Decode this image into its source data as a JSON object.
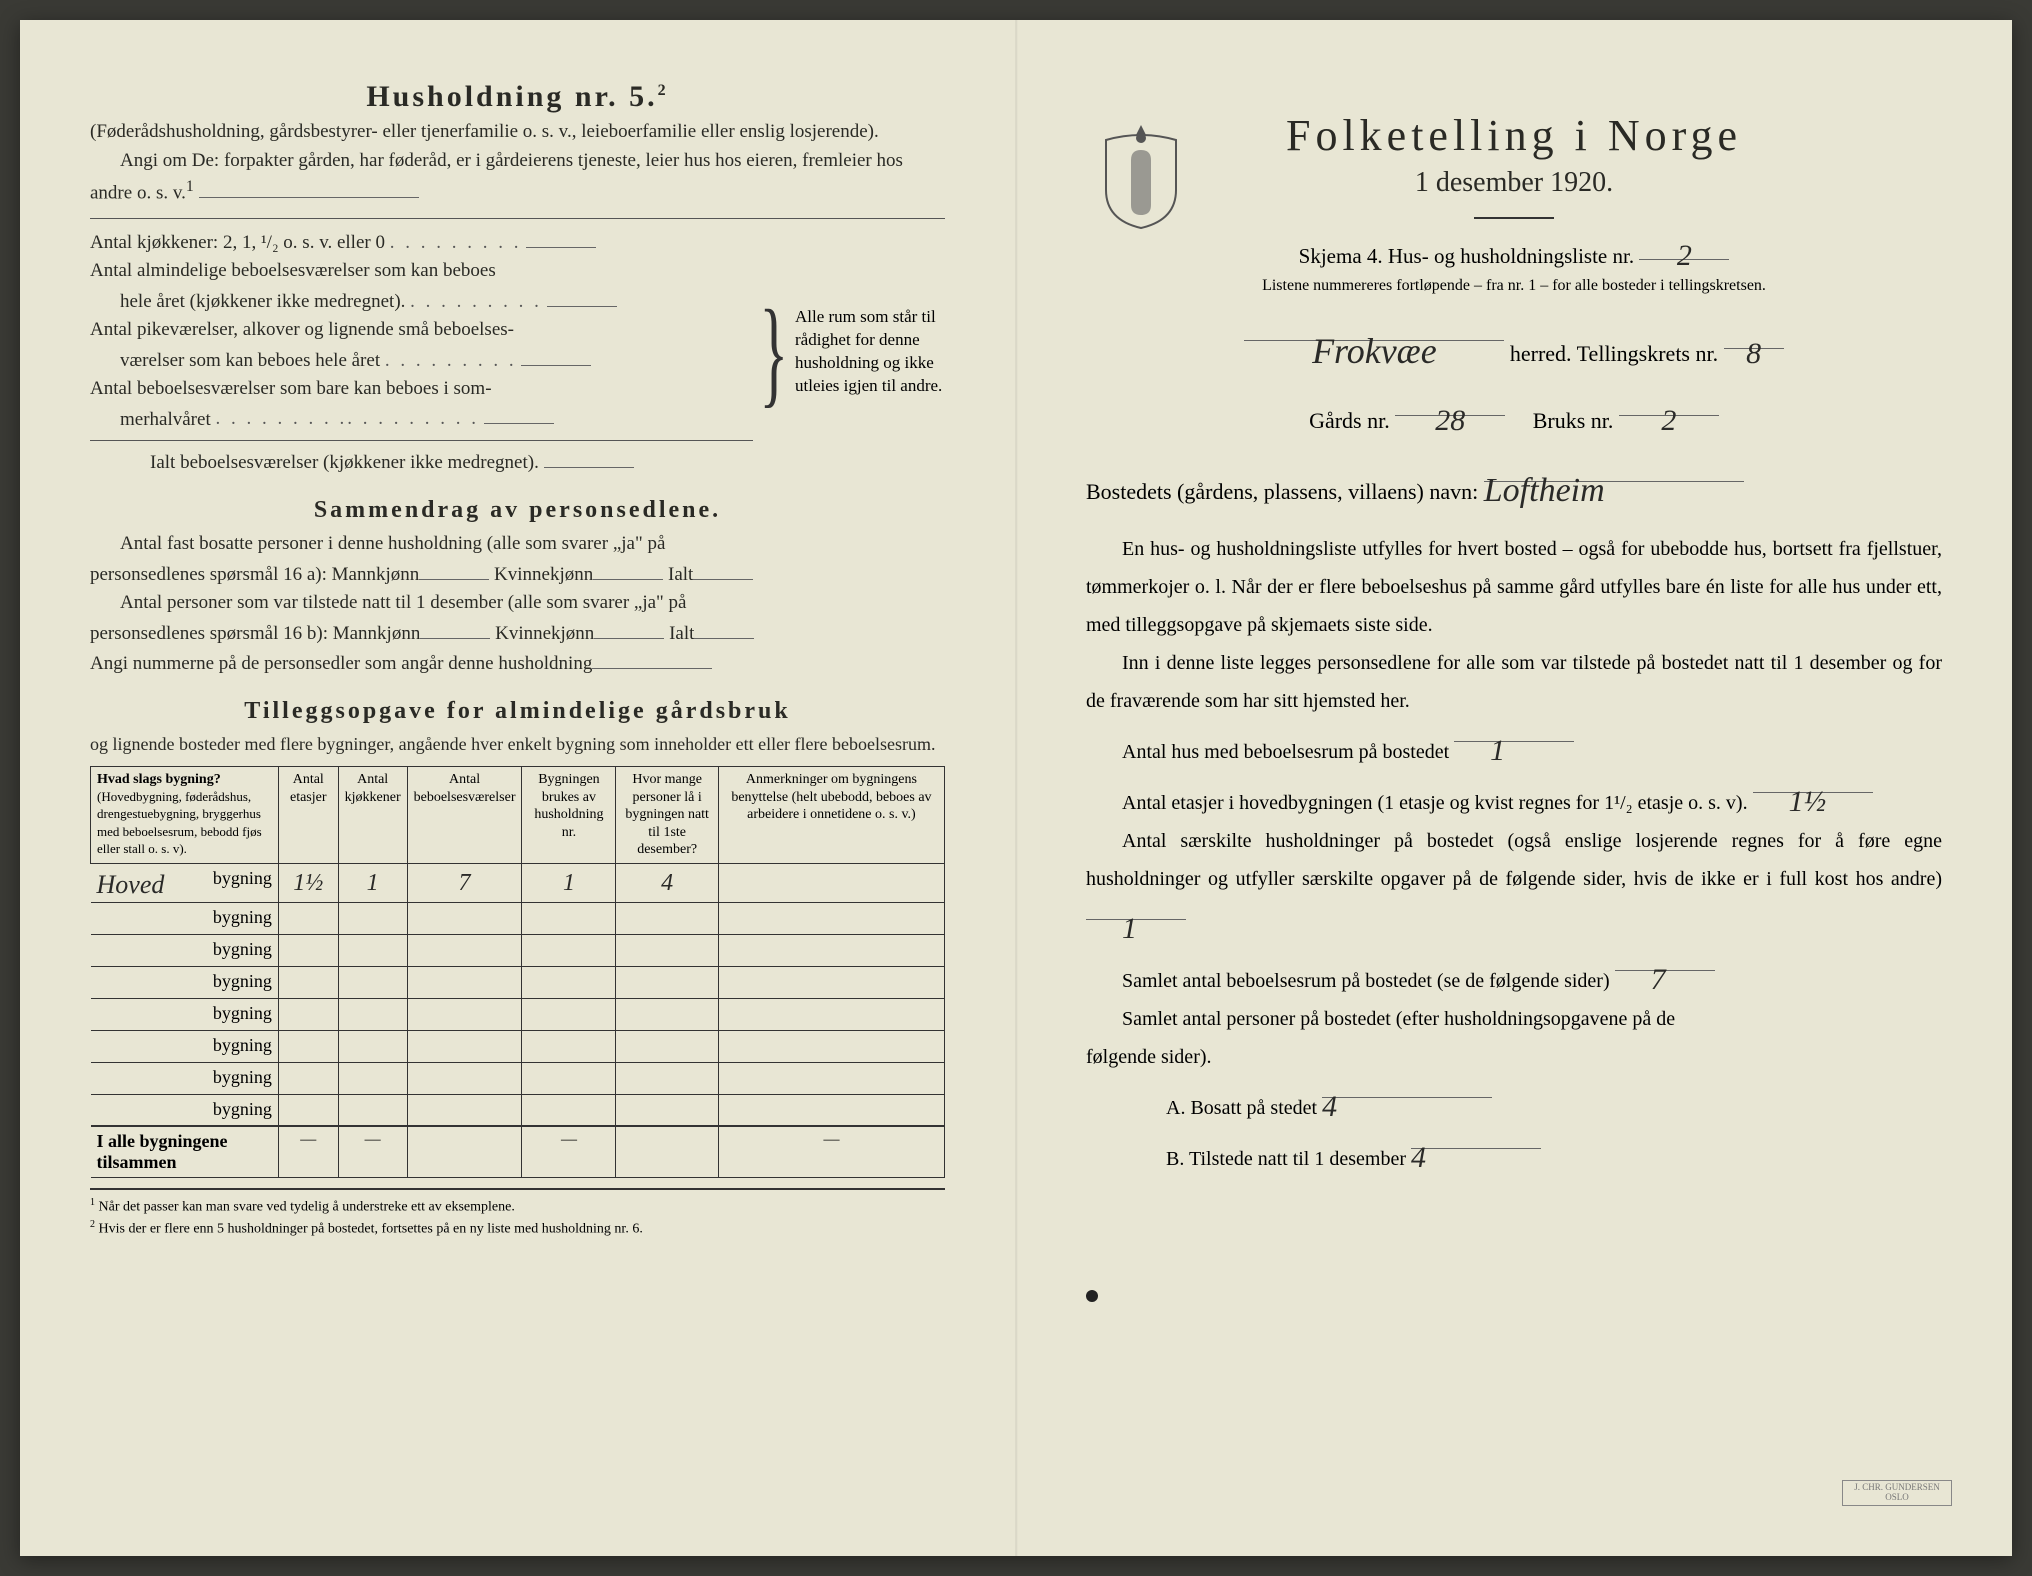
{
  "left": {
    "heading": "Husholdning nr. 5.",
    "heading_sup": "2",
    "intro1": "(Føderådshusholdning, gårdsbestyrer- eller tjenerfamilie o. s. v., leieboerfamilie eller enslig losjerende).",
    "intro2": "Angi om De:  forpakter gården, har føderåd, er i gårdeierens tjeneste, leier hus hos eieren, fremleier hos andre o. s. v.",
    "intro2_sup": "1",
    "l1": "Antal kjøkkener: 2, 1, ¹/₂ o. s. v. eller 0",
    "l2a": "Antal almindelige beboelsesværelser som kan beboes",
    "l2b": "hele året (kjøkkener ikke medregnet).",
    "l3a": "Antal pikeværelser, alkover og lignende små beboelses-",
    "l3b": "værelser som kan beboes hele året",
    "l4a": "Antal beboelsesværelser som bare kan beboes i som-",
    "l4b": "merhalvåret",
    "l5": "Ialt beboelsesværelser  (kjøkkener ikke medregnet).",
    "brace_text": "Alle rum som står til rådighet for denne husholdning og ikke utleies igjen til andre.",
    "h3a": "Sammendrag av personsedlene.",
    "s1a": "Antal fast bosatte personer i denne husholdning (alle som svarer „ja\" på",
    "s1b": "personsedlenes spørsmål 16 a): Mannkjønn",
    "s1c": "Kvinnekjønn",
    "s1d": "Ialt",
    "s2a": "Antal personer som var tilstede natt til 1 desember (alle som svarer „ja\" på",
    "s2b": "personsedlenes spørsmål 16 b): Mannkjønn",
    "s3": "Angi nummerne på de personsedler som angår denne husholdning",
    "h3b": "Tilleggsopgave for almindelige gårdsbruk",
    "h3b_sub": "og lignende bosteder med flere bygninger, angående hver enkelt bygning som inneholder ett eller flere beboelsesrum.",
    "th1": "Hvad slags bygning?",
    "th1_sub": "(Hovedbygning, føderådshus, drengestuebygning, bryggerhus med beboelsesrum, bebodd fjøs eller stall o. s. v).",
    "th2": "Antal etasjer",
    "th3": "Antal kjøkkener",
    "th4": "Antal beboelsesværelser",
    "th5": "Bygningen brukes av husholdning nr.",
    "th6": "Hvor mange personer lå i bygningen natt til 1ste desember?",
    "th7": "Anmerkninger om bygningens benyttelse (helt ubebodd, beboes av arbeidere i onnetidene o. s. v.)",
    "row_hw": "Hoved",
    "row_label": "bygning",
    "row_vals": [
      "1½",
      "1",
      "7",
      "1",
      "4",
      ""
    ],
    "total_label": "I alle bygningene tilsammen",
    "fn1": "Når det passer kan man svare ved tydelig å understreke ett av eksemplene.",
    "fn2": "Hvis der er flere enn 5 husholdninger på bostedet, fortsettes på en ny liste med husholdning nr. 6."
  },
  "right": {
    "main_title": "Folketelling i Norge",
    "subtitle": "1 desember 1920.",
    "form_line_a": "Skjema 4.  Hus- og husholdningsliste nr.",
    "form_nr": "2",
    "small_note": "Listene nummereres fortløpende – fra nr. 1 – for alle bosteder i tellingskretsen.",
    "herred_hw": "Frokvæe",
    "herred_label": "herred.   Tellingskrets nr.",
    "krets_nr": "8",
    "gard_label": "Gårds nr.",
    "gard_nr": "28",
    "bruk_label": "Bruks nr.",
    "bruk_nr": "2",
    "bosted_label": "Bostedets (gårdens, plassens, villaens) navn:",
    "bosted_hw": "Loftheim",
    "p1": "En hus- og husholdningsliste utfylles for hvert bosted – også for ubebodde hus, bortsett fra fjellstuer, tømmerkojer o. l.  Når der er flere beboelseshus på samme gård utfylles bare én liste for alle hus under ett, med tilleggsopgave på skjemaets siste side.",
    "p2": "Inn i denne liste legges personsedlene for alle som var tilstede på bostedet natt til 1 desember og for de fraværende som har sitt hjemsted her.",
    "q1": "Antal hus med beboelsesrum på bostedet",
    "q1_hw": "1",
    "q2": "Antal etasjer i hovedbygningen (1 etasje og kvist regnes for 1¹/₂ etasje o. s. v).",
    "q2_hw": "1½",
    "q3": "Antal særskilte husholdninger på bostedet (også enslige losjerende regnes for å føre egne husholdninger og utfyller særskilte opgaver på de følgende sider, hvis de ikke er i full kost hos andre)",
    "q3_hw": "1",
    "q4": "Samlet antal beboelsesrum på bostedet (se de følgende sider)",
    "q4_hw": "7",
    "q5": "Samlet antal personer på bostedet (efter husholdningsopgavene på de",
    "q5b": "følgende sider).",
    "qa": "A.  Bosatt på stedet",
    "qa_hw": "4",
    "qb": "B.  Tilstede natt til 1 desember",
    "qb_hw": "4"
  },
  "colors": {
    "paper": "#e8e6d4",
    "ink": "#2a2a25",
    "handwriting": "#2a2a28"
  }
}
